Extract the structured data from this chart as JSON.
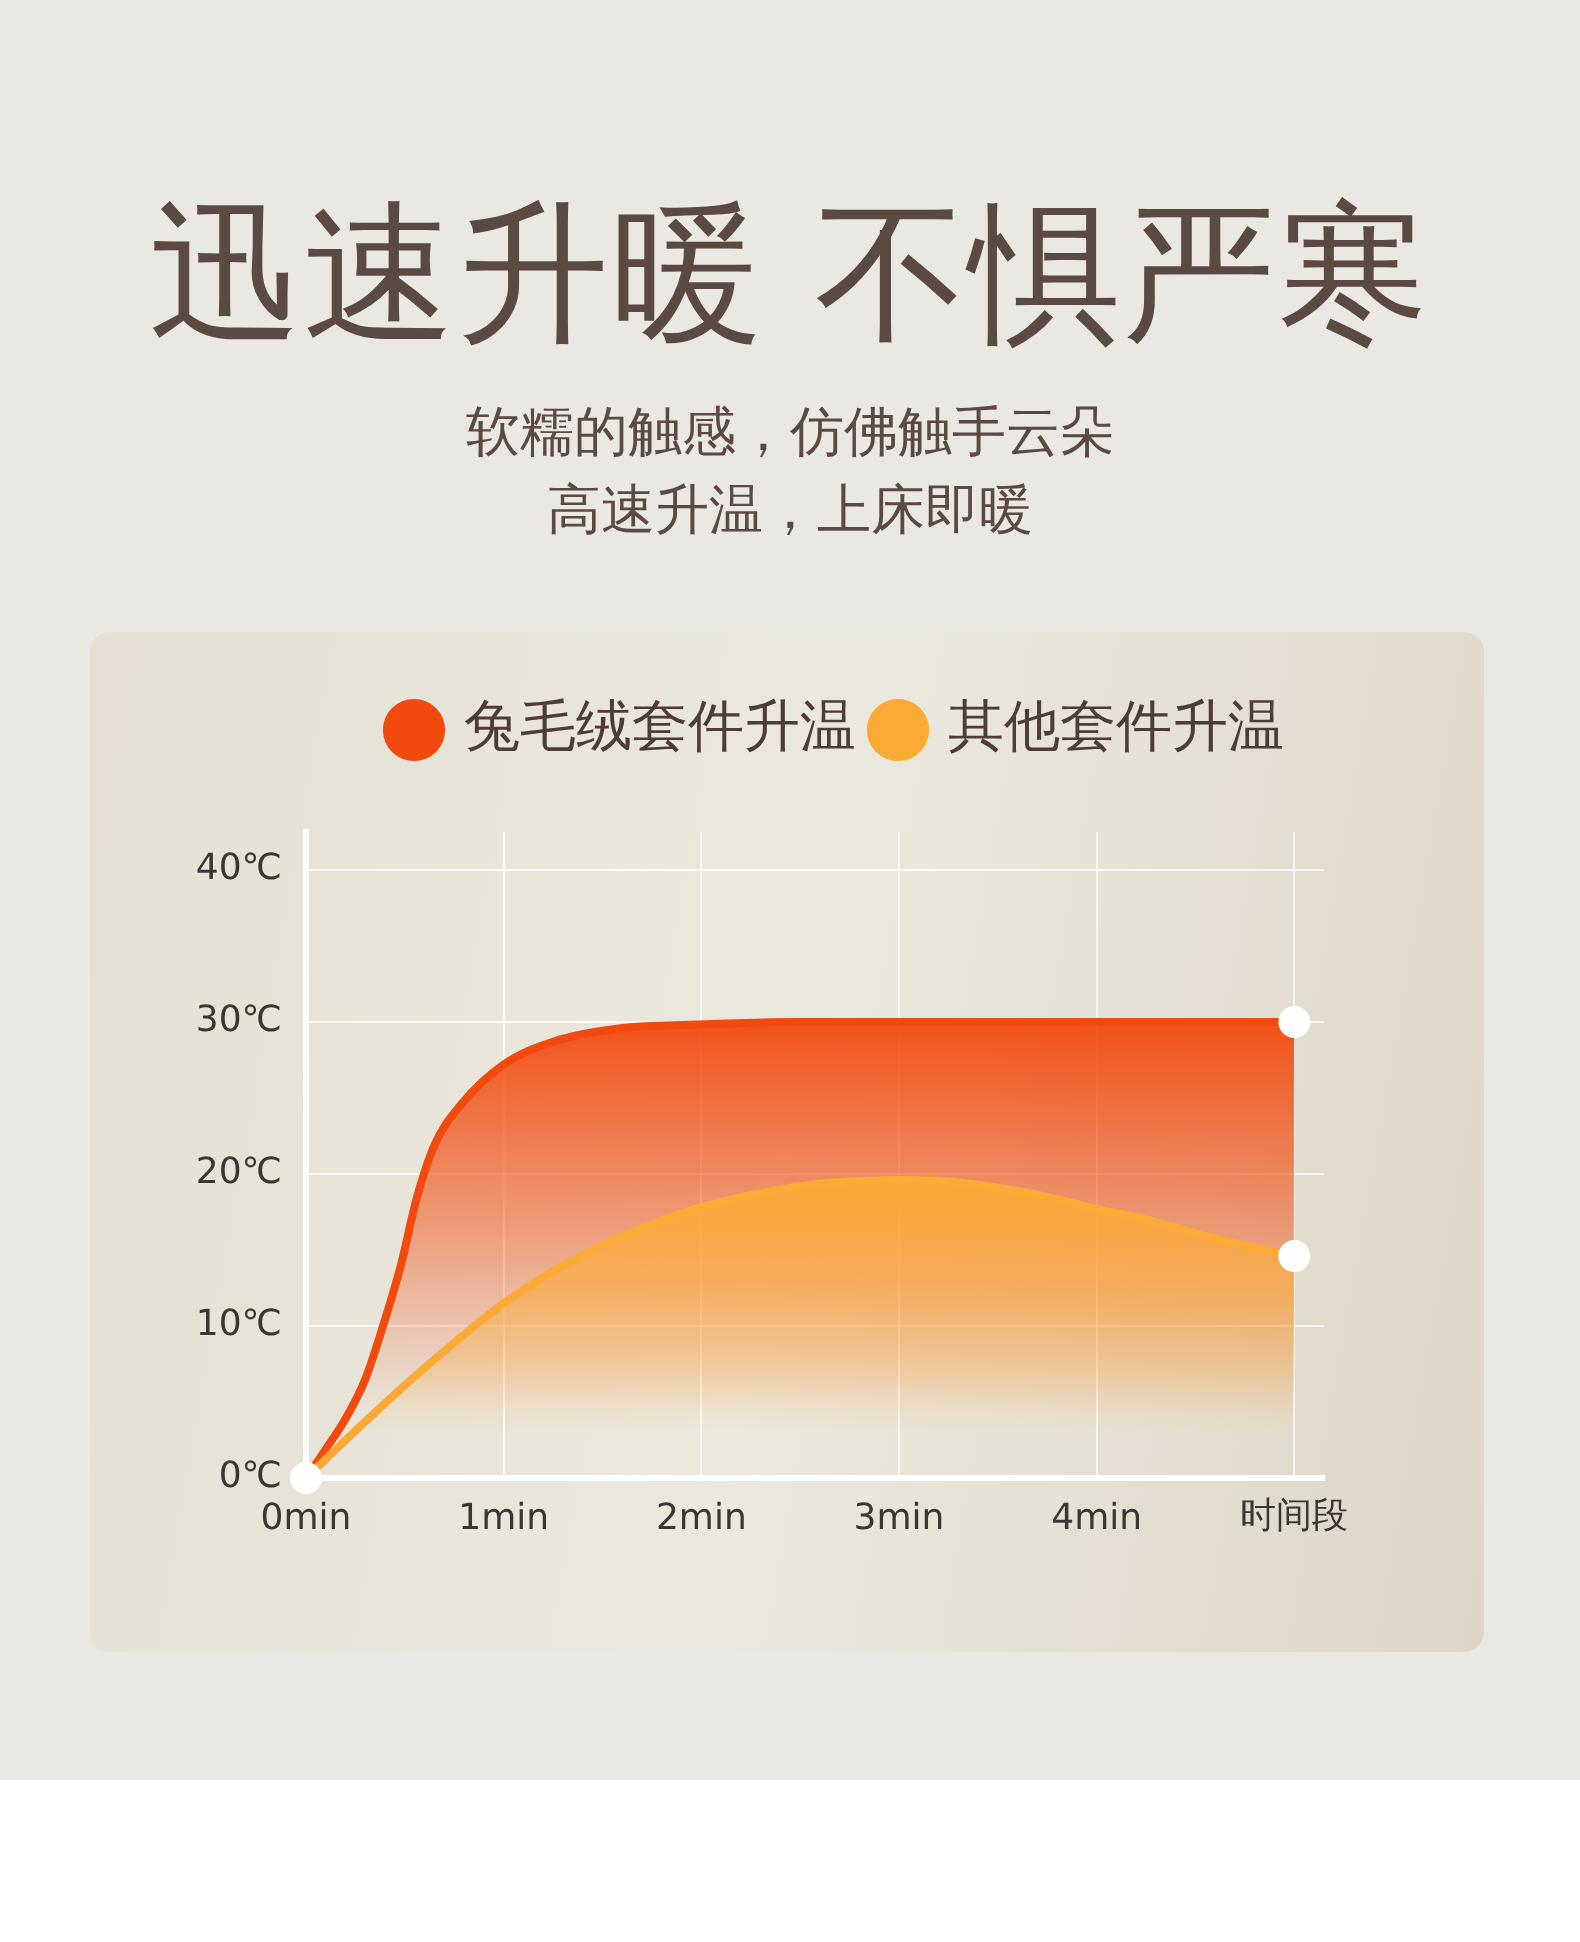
{
  "chart_data": {
    "type": "area",
    "title": "迅速升暖 不惧严寒",
    "subtitle": "软糯的触感，仿佛触手云朵高速升温，上床即暖",
    "xlabel": "时间段",
    "xlim": [
      0,
      5.15
    ],
    "xticks": [
      {
        "value": 0,
        "label": "0min"
      },
      {
        "value": 1,
        "label": "1min"
      },
      {
        "value": 2,
        "label": "2min"
      },
      {
        "value": 3,
        "label": "3min"
      },
      {
        "value": 4,
        "label": "4min"
      },
      {
        "value": 5,
        "label": null
      }
    ],
    "ylim": [
      0,
      42.5
    ],
    "yticks": [
      {
        "value": 0,
        "label": "0℃"
      },
      {
        "value": 10,
        "label": "10℃"
      },
      {
        "value": 20,
        "label": "20℃"
      },
      {
        "value": 30,
        "label": "30℃"
      },
      {
        "value": 40,
        "label": "40℃"
      }
    ],
    "grid": true,
    "legend": "top",
    "series": [
      {
        "name": "兔毛绒套件升温",
        "color": "#f24a0e",
        "x": [
          0,
          0.1,
          0.2,
          0.3,
          0.38,
          0.48,
          0.56,
          0.65,
          0.78,
          1.0,
          1.25,
          1.6,
          1.9,
          2.5,
          3,
          4,
          5
        ],
        "values": [
          0,
          1.9,
          3.9,
          6.5,
          9.6,
          14,
          18.4,
          21.9,
          24.5,
          27.2,
          28.7,
          29.6,
          29.8,
          30,
          30,
          30,
          30
        ]
      },
      {
        "name": "其他套件升温",
        "color": "#fbaa35",
        "x": [
          0,
          0.25,
          0.5,
          0.75,
          1.0,
          1.25,
          1.5,
          1.75,
          2.0,
          2.25,
          2.5,
          2.75,
          3.0,
          3.25,
          3.5,
          3.75,
          4.0,
          4.25,
          4.5,
          4.75,
          5
        ],
        "values": [
          0,
          3.1,
          6.1,
          8.9,
          11.5,
          13.6,
          15.3,
          16.7,
          17.8,
          18.6,
          19.2,
          19.5,
          19.6,
          19.5,
          19.1,
          18.5,
          17.7,
          17.0,
          16.1,
          15.3,
          14.6
        ]
      },
      {
        "type": "scatter",
        "color": "#ffffff",
        "marker": "circle",
        "x": [
          0,
          5,
          5
        ],
        "values": [
          0,
          30,
          14.6
        ]
      }
    ]
  }
}
